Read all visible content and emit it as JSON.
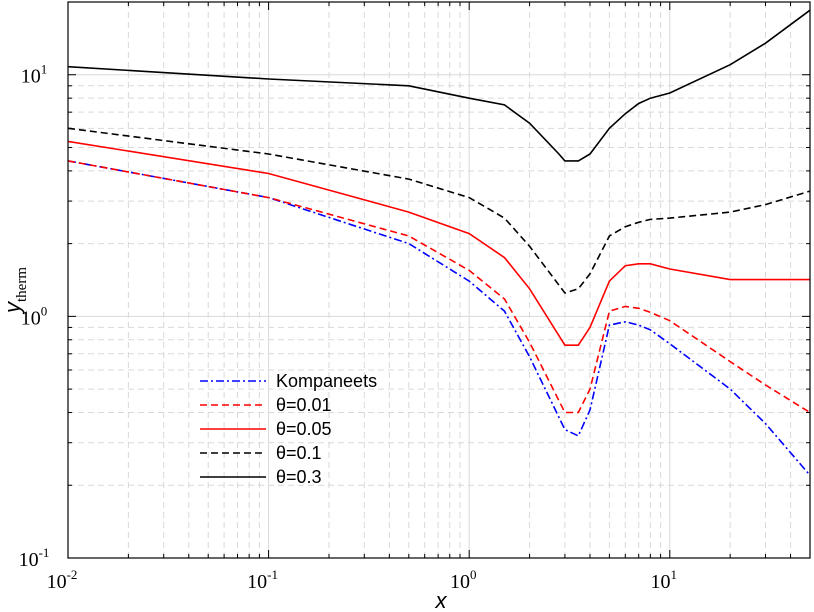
{
  "chart_data": {
    "type": "line",
    "title": "",
    "xlabel": "x",
    "ylabel": "y",
    "ylabel_sub": "therm",
    "xscale": "log",
    "yscale": "log",
    "xlim": [
      0.01,
      50
    ],
    "ylim": [
      0.1,
      20
    ],
    "grid": true,
    "legend_position": "lower-left",
    "x_ticks": [
      {
        "value": 0.01,
        "base": "10",
        "exp": "-2"
      },
      {
        "value": 0.1,
        "base": "10",
        "exp": "-1"
      },
      {
        "value": 1,
        "base": "10",
        "exp": "0"
      },
      {
        "value": 10,
        "base": "10",
        "exp": "1"
      }
    ],
    "y_ticks": [
      {
        "value": 0.1,
        "base": "10",
        "exp": "-1"
      },
      {
        "value": 1,
        "base": "10",
        "exp": "0"
      },
      {
        "value": 10,
        "base": "10",
        "exp": "1"
      }
    ],
    "series": [
      {
        "name": "Kompaneets",
        "color": "#0000ff",
        "dash": "dashdot",
        "x": [
          0.01,
          0.1,
          0.5,
          1,
          1.5,
          2,
          3,
          3.5,
          4,
          5,
          6,
          7,
          8,
          10,
          20,
          30,
          50
        ],
        "y": [
          4.4,
          3.1,
          2.0,
          1.4,
          1.05,
          0.68,
          0.34,
          0.32,
          0.41,
          0.92,
          0.95,
          0.92,
          0.88,
          0.77,
          0.5,
          0.36,
          0.22
        ]
      },
      {
        "name": "θ=0.01",
        "color": "#ff0000",
        "dash": "dashed",
        "x": [
          0.01,
          0.1,
          0.5,
          1,
          1.5,
          2,
          3,
          3.5,
          4,
          5,
          6,
          7,
          8,
          10,
          20,
          30,
          50
        ],
        "y": [
          4.4,
          3.1,
          2.15,
          1.55,
          1.18,
          0.78,
          0.4,
          0.4,
          0.5,
          1.05,
          1.1,
          1.08,
          1.04,
          0.96,
          0.65,
          0.52,
          0.4
        ]
      },
      {
        "name": "θ=0.05",
        "color": "#ff0000",
        "dash": "solid",
        "x": [
          0.01,
          0.1,
          0.5,
          1,
          1.5,
          2,
          3,
          3.5,
          4,
          5,
          6,
          7,
          8,
          10,
          20,
          30,
          50
        ],
        "y": [
          5.3,
          3.9,
          2.7,
          2.2,
          1.75,
          1.3,
          0.76,
          0.76,
          0.9,
          1.4,
          1.62,
          1.65,
          1.65,
          1.57,
          1.42,
          1.42,
          1.42
        ]
      },
      {
        "name": "θ=0.1",
        "color": "#000000",
        "dash": "dashed",
        "x": [
          0.01,
          0.1,
          0.5,
          1,
          1.5,
          2,
          3,
          3.5,
          4,
          5,
          6,
          7,
          8,
          10,
          20,
          30,
          50
        ],
        "y": [
          6.0,
          4.7,
          3.7,
          3.1,
          2.55,
          1.95,
          1.25,
          1.3,
          1.5,
          2.15,
          2.35,
          2.45,
          2.52,
          2.55,
          2.7,
          2.9,
          3.3
        ]
      },
      {
        "name": "θ=0.3",
        "color": "#000000",
        "dash": "solid",
        "x": [
          0.01,
          0.1,
          0.5,
          1,
          1.5,
          2,
          2.8,
          3,
          3.5,
          4,
          5,
          6,
          7,
          8,
          10,
          20,
          30,
          50
        ],
        "y": [
          10.8,
          9.6,
          9.0,
          8.0,
          7.5,
          6.3,
          4.7,
          4.4,
          4.4,
          4.7,
          6.0,
          6.9,
          7.6,
          8.0,
          8.4,
          11.0,
          13.5,
          18.5
        ]
      }
    ]
  }
}
